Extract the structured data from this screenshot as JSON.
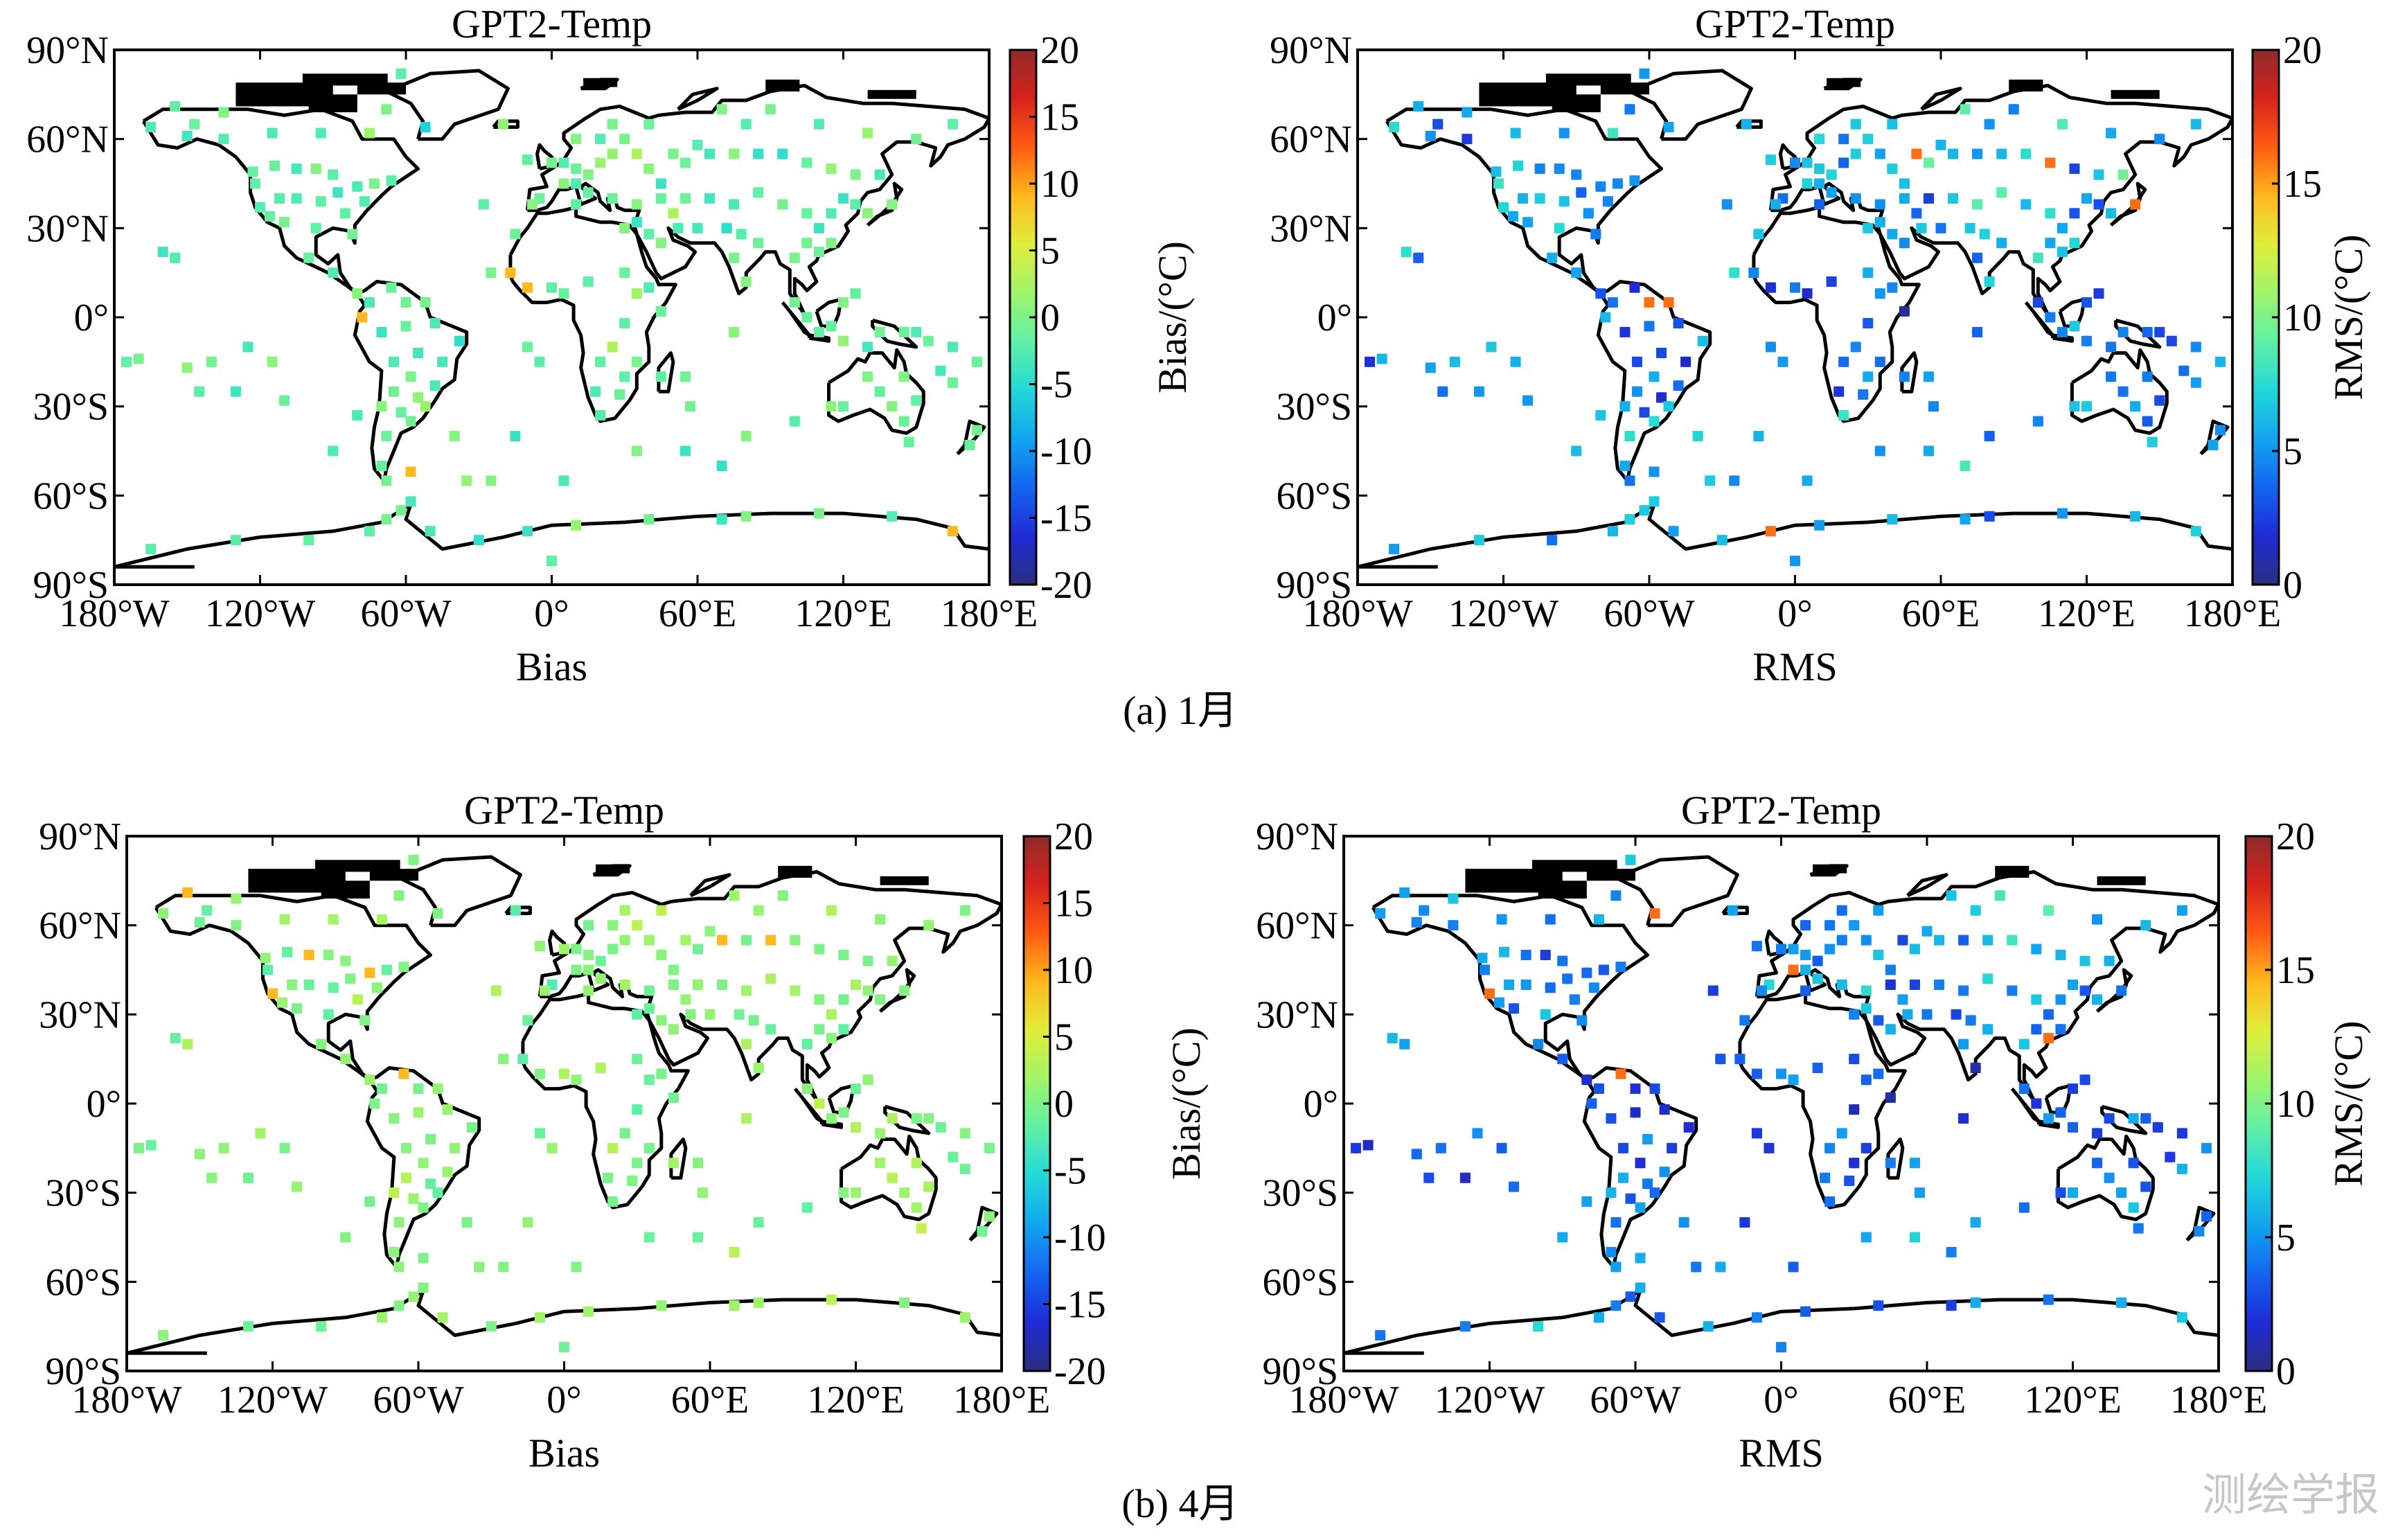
{
  "watermark": "测绘学报",
  "colormap": [
    "#2b2f7f",
    "#1f2bd6",
    "#1465f0",
    "#12a5f0",
    "#22d8d8",
    "#5ff0a6",
    "#9ff46a",
    "#dfee3a",
    "#ffb81d",
    "#ff5c12",
    "#d7221c",
    "#8e2b2b"
  ],
  "chart_data": [
    {
      "type": "map-scatter",
      "id": "a-bias",
      "title": "GPT2-Temp",
      "xlabel": "Bias",
      "colorbar_label": "Bias/(°C)",
      "clim": [
        -20,
        20
      ],
      "colorbar_ticks": [
        "20",
        "15",
        "10",
        "5",
        "0",
        "-5",
        "-10",
        "-15",
        "-20"
      ],
      "x_ticks": [
        "180°W",
        "120°W",
        "60°W",
        "0°",
        "60°E",
        "120°E",
        "180°E"
      ],
      "y_ticks": [
        "90°N",
        "60°N",
        "30°N",
        "0°",
        "30°S",
        "60°S",
        "90°S"
      ],
      "seed": 11,
      "mean": -1.5,
      "spread": 3.2
    },
    {
      "type": "map-scatter",
      "id": "a-rms",
      "title": "GPT2-Temp",
      "xlabel": "RMS",
      "colorbar_label": "RMS/(°C)",
      "clim": [
        0,
        20
      ],
      "colorbar_ticks": [
        "20",
        "15",
        "10",
        "5",
        "0"
      ],
      "x_ticks": [
        "180°W",
        "120°W",
        "60°W",
        "0°",
        "60°E",
        "120°E",
        "180°E"
      ],
      "y_ticks": [
        "90°N",
        "60°N",
        "30°N",
        "0°",
        "30°S",
        "60°S",
        "90°S"
      ],
      "seed": 11,
      "mean": 5.5,
      "spread": 2.8
    },
    {
      "type": "map-scatter",
      "id": "b-bias",
      "title": "GPT2-Temp",
      "xlabel": "Bias",
      "colorbar_label": "Bias/(°C)",
      "clim": [
        -20,
        20
      ],
      "colorbar_ticks": [
        "20",
        "15",
        "10",
        "5",
        "0",
        "-5",
        "-10",
        "-15",
        "-20"
      ],
      "x_ticks": [
        "180°W",
        "120°W",
        "60°W",
        "0°",
        "60°E",
        "120°E",
        "180°E"
      ],
      "y_ticks": [
        "90°N",
        "60°N",
        "30°N",
        "0°",
        "30°S",
        "60°S",
        "90°S"
      ],
      "seed": 23,
      "mean": 0.6,
      "spread": 2.6
    },
    {
      "type": "map-scatter",
      "id": "b-rms",
      "title": "GPT2-Temp",
      "xlabel": "RMS",
      "colorbar_label": "RMS/(°C)",
      "clim": [
        0,
        20
      ],
      "colorbar_ticks": [
        "20",
        "15",
        "10",
        "5",
        "0"
      ],
      "x_ticks": [
        "180°W",
        "120°W",
        "60°W",
        "0°",
        "60°E",
        "120°E",
        "180°E"
      ],
      "y_ticks": [
        "90°N",
        "60°N",
        "30°N",
        "0°",
        "30°S",
        "60°S",
        "90°S"
      ],
      "seed": 23,
      "mean": 4.6,
      "spread": 2.4
    }
  ],
  "captions": [
    "(a) 1月",
    "(b) 4月"
  ]
}
